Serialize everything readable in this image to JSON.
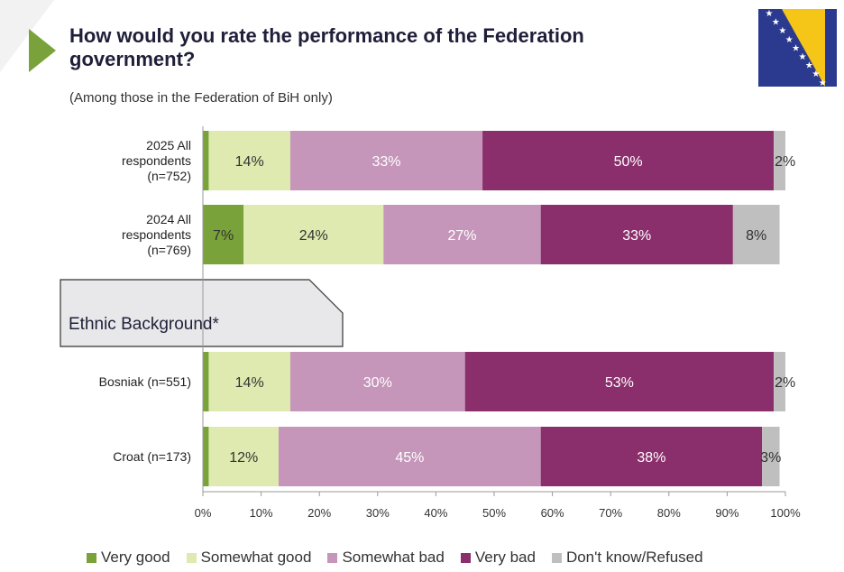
{
  "header": {
    "title": "How would you rate the performance of the Federation government?",
    "subtitle": "(Among those in the Federation of BiH only)"
  },
  "flag_icon": "bosnia-herzegovina-flag",
  "section_label": "Ethnic Background*",
  "colors": {
    "very_good": "#7aa23a",
    "somewhat_good": "#dfeab0",
    "somewhat_bad": "#c596ba",
    "very_bad": "#8a2e6c",
    "dont_know": "#bfbfbf",
    "flag_blue": "#2b3a8f",
    "flag_yellow": "#f5c518"
  },
  "chart_data": {
    "type": "bar",
    "orientation": "horizontal",
    "stacked": true,
    "categories": [
      "2025 All respondents (n=752)",
      "2024 All respondents (n=769)",
      "Bosniak (n=551)",
      "Croat (n=173)"
    ],
    "series": [
      {
        "name": "Very good",
        "values": [
          1,
          7,
          1,
          1
        ],
        "labels": [
          "1%",
          "7%",
          "1%",
          "1%"
        ]
      },
      {
        "name": "Somewhat good",
        "values": [
          14,
          24,
          14,
          12
        ],
        "labels": [
          "14%",
          "24%",
          "14%",
          "12%"
        ]
      },
      {
        "name": "Somewhat bad",
        "values": [
          33,
          27,
          30,
          45
        ],
        "labels": [
          "33%",
          "27%",
          "30%",
          "45%"
        ]
      },
      {
        "name": "Very bad",
        "values": [
          50,
          33,
          53,
          38
        ],
        "labels": [
          "50%",
          "33%",
          "53%",
          "38%"
        ]
      },
      {
        "name": "Don't know/Refused",
        "values": [
          2,
          8,
          2,
          3
        ],
        "labels": [
          "2%",
          "8%",
          "2%",
          "3%"
        ]
      }
    ],
    "xlim": [
      0,
      100
    ],
    "xticks": [
      "0%",
      "10%",
      "20%",
      "30%",
      "40%",
      "50%",
      "60%",
      "70%",
      "80%",
      "90%",
      "100%"
    ],
    "legend_position": "bottom",
    "grid": false
  }
}
